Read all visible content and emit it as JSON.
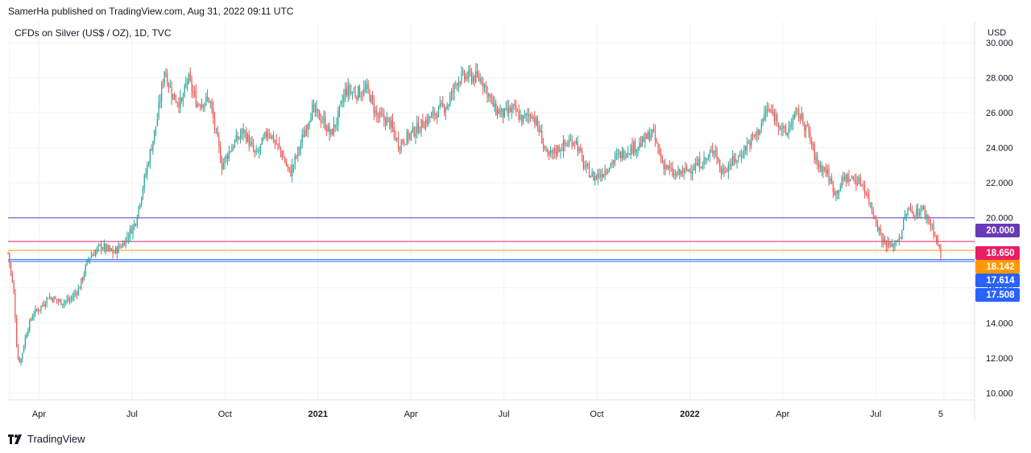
{
  "header": {
    "text": "SamerHa published on TradingView.com, Aug 31, 2022 09:11 UTC"
  },
  "symbol": {
    "text": "CFDs on Silver (US$ / OZ), 1D, TVC"
  },
  "footer": {
    "brand": "TradingView"
  },
  "colors": {
    "up": "#26a69a",
    "down": "#ef5350",
    "grid": "#f0f3fa",
    "level_20": "#673ab7",
    "level_18650": "#e91e63",
    "level_18142": "#ff9800",
    "level_17614": "#2962ff",
    "level_17508": "#2962ff"
  },
  "chart_data": {
    "type": "candlestick",
    "title": "CFDs on Silver (US$ / OZ), 1D, TVC",
    "currency": "USD",
    "ylim": [
      9.6,
      31.2
    ],
    "y_ticks": [
      "10.000",
      "12.000",
      "14.000",
      "16.000",
      "18.000",
      "20.000",
      "22.000",
      "24.000",
      "26.000",
      "28.000",
      "30.000"
    ],
    "y_tick_values": [
      10,
      12,
      14,
      16,
      18,
      20,
      22,
      24,
      26,
      28,
      30
    ],
    "x_range": [
      0,
      31.4
    ],
    "x_ticks": [
      {
        "label": "Apr",
        "t": 1,
        "bold": false
      },
      {
        "label": "Jul",
        "t": 4,
        "bold": false
      },
      {
        "label": "Oct",
        "t": 7,
        "bold": false
      },
      {
        "label": "2021",
        "t": 10,
        "bold": true
      },
      {
        "label": "Apr",
        "t": 13,
        "bold": false
      },
      {
        "label": "Jul",
        "t": 16,
        "bold": false
      },
      {
        "label": "Oct",
        "t": 19,
        "bold": false
      },
      {
        "label": "2022",
        "t": 22,
        "bold": true
      },
      {
        "label": "Apr",
        "t": 25,
        "bold": false
      },
      {
        "label": "Jul",
        "t": 28,
        "bold": false
      },
      {
        "label": "5",
        "t": 30.1,
        "bold": false
      }
    ],
    "x_grid": [
      0.05,
      1,
      4,
      7,
      10,
      13,
      16,
      19,
      22,
      25,
      28,
      30.2
    ],
    "price_path": [
      [
        0.0,
        18.0
      ],
      [
        0.2,
        15.5
      ],
      [
        0.3,
        12.0
      ],
      [
        0.4,
        11.8
      ],
      [
        0.6,
        13.5
      ],
      [
        0.8,
        14.5
      ],
      [
        1.1,
        15.0
      ],
      [
        1.3,
        15.5
      ],
      [
        1.7,
        15.2
      ],
      [
        2.0,
        15.3
      ],
      [
        2.3,
        16.0
      ],
      [
        2.6,
        17.7
      ],
      [
        3.0,
        18.4
      ],
      [
        3.4,
        18.0
      ],
      [
        3.7,
        18.5
      ],
      [
        4.1,
        19.7
      ],
      [
        4.5,
        23.0
      ],
      [
        4.8,
        25.5
      ],
      [
        5.05,
        28.5
      ],
      [
        5.3,
        27.0
      ],
      [
        5.6,
        26.5
      ],
      [
        5.8,
        28.0
      ],
      [
        6.1,
        26.5
      ],
      [
        6.5,
        26.8
      ],
      [
        6.9,
        23.0
      ],
      [
        7.2,
        24.0
      ],
      [
        7.6,
        25.0
      ],
      [
        8.0,
        23.5
      ],
      [
        8.4,
        25.0
      ],
      [
        8.8,
        23.8
      ],
      [
        9.1,
        22.5
      ],
      [
        9.4,
        24.0
      ],
      [
        9.8,
        26.2
      ],
      [
        10.2,
        25.5
      ],
      [
        10.4,
        24.7
      ],
      [
        10.6,
        25.5
      ],
      [
        10.9,
        27.3
      ],
      [
        11.2,
        27.1
      ],
      [
        11.6,
        27.3
      ],
      [
        11.9,
        25.8
      ],
      [
        12.3,
        25.5
      ],
      [
        12.6,
        24.2
      ],
      [
        13.0,
        24.8
      ],
      [
        13.4,
        25.4
      ],
      [
        13.8,
        26.0
      ],
      [
        14.2,
        26.5
      ],
      [
        14.5,
        27.9
      ],
      [
        14.9,
        28.1
      ],
      [
        15.3,
        27.9
      ],
      [
        15.7,
        26.2
      ],
      [
        16.0,
        25.9
      ],
      [
        16.3,
        26.2
      ],
      [
        16.6,
        25.6
      ],
      [
        16.9,
        26.0
      ],
      [
        17.2,
        24.7
      ],
      [
        17.4,
        23.4
      ],
      [
        17.7,
        23.9
      ],
      [
        18.0,
        24.2
      ],
      [
        18.3,
        24.5
      ],
      [
        18.6,
        22.9
      ],
      [
        18.9,
        22.3
      ],
      [
        19.2,
        22.6
      ],
      [
        19.6,
        23.4
      ],
      [
        20.0,
        23.9
      ],
      [
        20.4,
        24.2
      ],
      [
        20.8,
        24.9
      ],
      [
        21.1,
        23.2
      ],
      [
        21.5,
        22.4
      ],
      [
        21.9,
        22.7
      ],
      [
        22.3,
        23.1
      ],
      [
        22.6,
        23.4
      ],
      [
        22.8,
        24.1
      ],
      [
        23.0,
        22.6
      ],
      [
        23.3,
        23.1
      ],
      [
        23.6,
        23.5
      ],
      [
        23.9,
        24.3
      ],
      [
        24.2,
        24.9
      ],
      [
        24.5,
        26.2
      ],
      [
        24.8,
        25.7
      ],
      [
        25.1,
        24.7
      ],
      [
        25.3,
        25.6
      ],
      [
        25.5,
        26.0
      ],
      [
        25.8,
        25.0
      ],
      [
        26.1,
        23.1
      ],
      [
        26.4,
        22.7
      ],
      [
        26.7,
        21.4
      ],
      [
        27.0,
        22.3
      ],
      [
        27.3,
        22.2
      ],
      [
        27.6,
        21.9
      ],
      [
        27.9,
        20.4
      ],
      [
        28.2,
        18.8
      ],
      [
        28.5,
        18.3
      ],
      [
        28.8,
        19.0
      ],
      [
        29.0,
        20.4
      ],
      [
        29.3,
        20.3
      ],
      [
        29.5,
        20.5
      ],
      [
        29.8,
        19.6
      ],
      [
        30.0,
        18.5
      ],
      [
        30.1,
        17.8
      ]
    ],
    "levels": [
      {
        "value": 20.0,
        "label": "20.000",
        "color": "#673ab7"
      },
      {
        "value": 18.65,
        "label": "18.650",
        "color": "#e91e63"
      },
      {
        "value": 18.142,
        "label": "18.142",
        "color": "#ff9800"
      },
      {
        "value": 17.614,
        "label": "17.614",
        "color": "#2962ff"
      },
      {
        "value": 17.508,
        "label": "17.508",
        "color": "#2962ff"
      }
    ]
  }
}
